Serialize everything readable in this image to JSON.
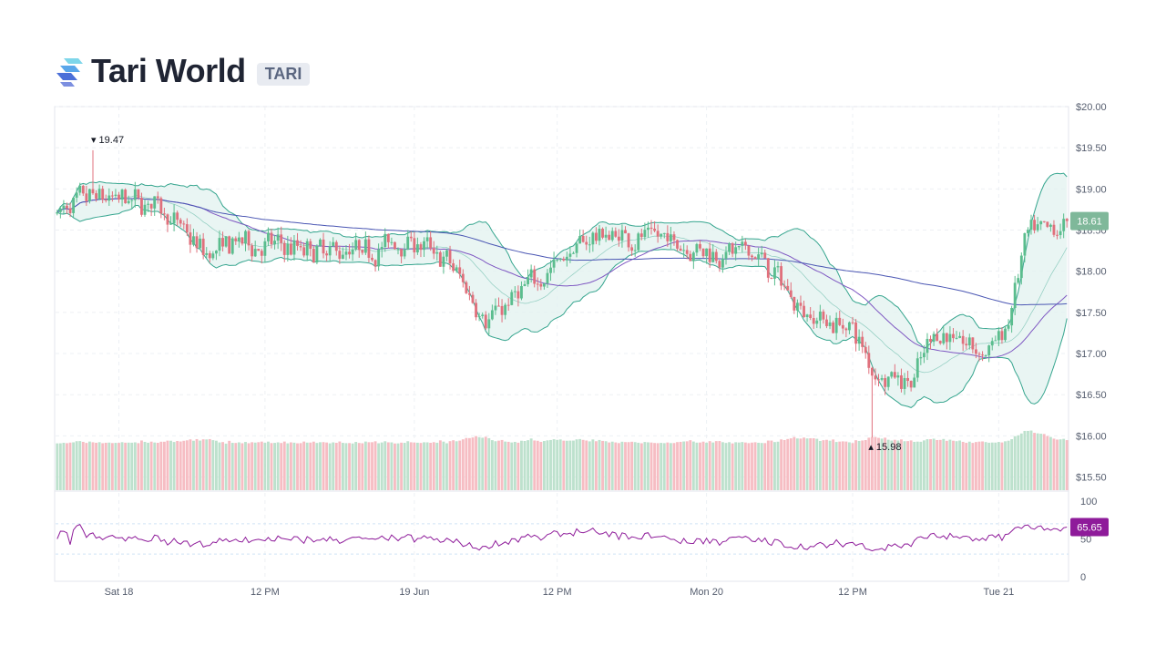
{
  "header": {
    "title": "Tari World",
    "ticker": "TARI"
  },
  "colors": {
    "up": "#26a69a",
    "down": "#ef5350",
    "up_candle": "#5bbd8e",
    "down_candle": "#e0707c",
    "band": "#35a58e",
    "band_fill": "#e4f3f0",
    "ma_long": "#4a56b3",
    "ma_short": "#7e57c2",
    "rsi": "#8e1b9a",
    "last_price_bg": "#7fb89a",
    "rsi_bg": "#8e1b9a"
  },
  "chart_data": {
    "type": "candlestick",
    "price_axis": {
      "ylim": [
        15.34,
        20.0
      ],
      "ticks": [
        "$20.00",
        "$19.50",
        "$19.00",
        "$18.50",
        "$18.00",
        "$17.50",
        "$17.00",
        "$16.50",
        "$16.00",
        "$15.50"
      ],
      "tick_values": [
        20.0,
        19.5,
        19.0,
        18.5,
        18.0,
        17.5,
        17.0,
        16.5,
        16.0,
        15.5
      ]
    },
    "time_axis": {
      "labels": [
        "Sat 18",
        "12 PM",
        "19 Jun",
        "12 PM",
        "Mon 20",
        "12 PM",
        "Tue 21"
      ],
      "label_index": [
        19,
        64,
        110,
        154,
        200,
        245,
        290
      ]
    },
    "price_path": {
      "candle_count": 312,
      "anchors": [
        [
          0,
          18.7
        ],
        [
          10,
          18.9
        ],
        [
          30,
          18.82
        ],
        [
          45,
          18.2
        ],
        [
          55,
          18.35
        ],
        [
          80,
          18.25
        ],
        [
          95,
          18.25
        ],
        [
          108,
          18.4
        ],
        [
          120,
          18.1
        ],
        [
          132,
          17.4
        ],
        [
          150,
          18.0
        ],
        [
          165,
          18.45
        ],
        [
          185,
          18.4
        ],
        [
          200,
          18.25
        ],
        [
          215,
          18.2
        ],
        [
          230,
          17.5
        ],
        [
          245,
          17.3
        ],
        [
          250,
          16.8
        ],
        [
          263,
          16.65
        ],
        [
          270,
          17.3
        ],
        [
          285,
          17.0
        ],
        [
          292,
          17.3
        ],
        [
          298,
          18.45
        ],
        [
          305,
          18.45
        ],
        [
          311,
          18.61
        ]
      ]
    },
    "high_marker": {
      "label": "19.47",
      "value": 19.47,
      "index": 11
    },
    "low_marker": {
      "label": "15.98",
      "value": 15.98,
      "index": 251
    },
    "last_price": {
      "label": "18.61",
      "value": 18.61
    },
    "bollinger": {
      "period": 20,
      "mult": 2
    },
    "moving_averages": [
      {
        "period": 40,
        "role": "short"
      },
      {
        "period": 120,
        "role": "long"
      }
    ],
    "rsi": {
      "ticks": [
        "100",
        "50",
        "0"
      ],
      "tick_values": [
        100,
        50,
        0
      ],
      "overbought": 70,
      "oversold": 30,
      "last_label": "65.65",
      "last_value": 65.65
    }
  }
}
